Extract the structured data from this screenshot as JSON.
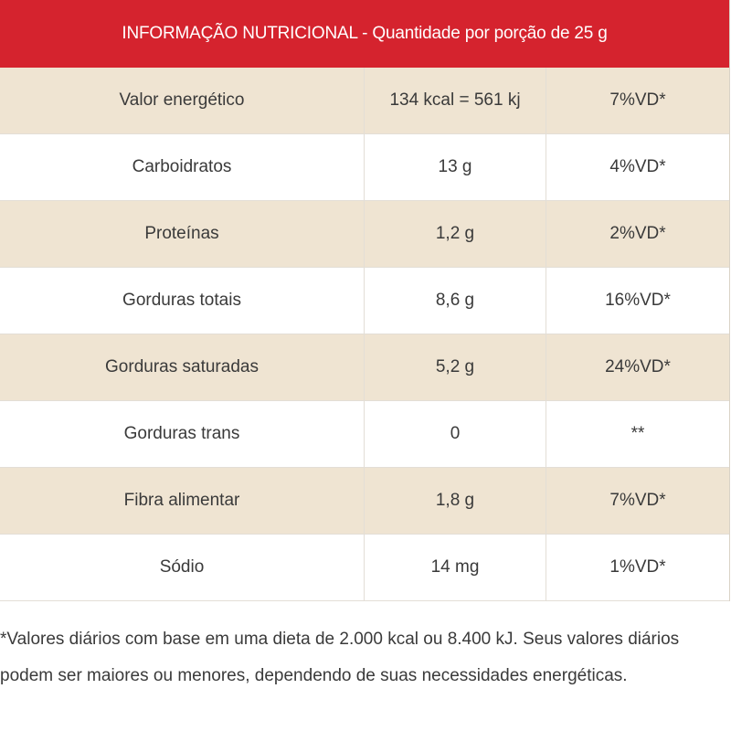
{
  "header": {
    "title": "INFORMAÇÃO NUTRICIONAL - Quantidade por porção de 25 g"
  },
  "colors": {
    "header_bg": "#d5232e",
    "shaded_row": "#efe4d2",
    "plain_row": "#ffffff"
  },
  "rows": [
    {
      "nutrient": "Valor energético",
      "amount": "134 kcal = 561 kj",
      "dv": "7%VD*"
    },
    {
      "nutrient": "Carboidratos",
      "amount": "13 g",
      "dv": "4%VD*"
    },
    {
      "nutrient": "Proteínas",
      "amount": "1,2 g",
      "dv": "2%VD*"
    },
    {
      "nutrient": "Gorduras totais",
      "amount": "8,6 g",
      "dv": "16%VD*"
    },
    {
      "nutrient": "Gorduras saturadas",
      "amount": "5,2 g",
      "dv": "24%VD*"
    },
    {
      "nutrient": "Gorduras trans",
      "amount": "0",
      "dv": "**"
    },
    {
      "nutrient": "Fibra alimentar",
      "amount": "1,8 g",
      "dv": "7%VD*"
    },
    {
      "nutrient": "Sódio",
      "amount": "14 mg",
      "dv": "1%VD*"
    }
  ],
  "footnote": "*Valores diários com base em uma dieta de 2.000 kcal ou 8.400 kJ. Seus valores diários podem ser maiores ou menores, dependendo de suas necessidades energéticas."
}
